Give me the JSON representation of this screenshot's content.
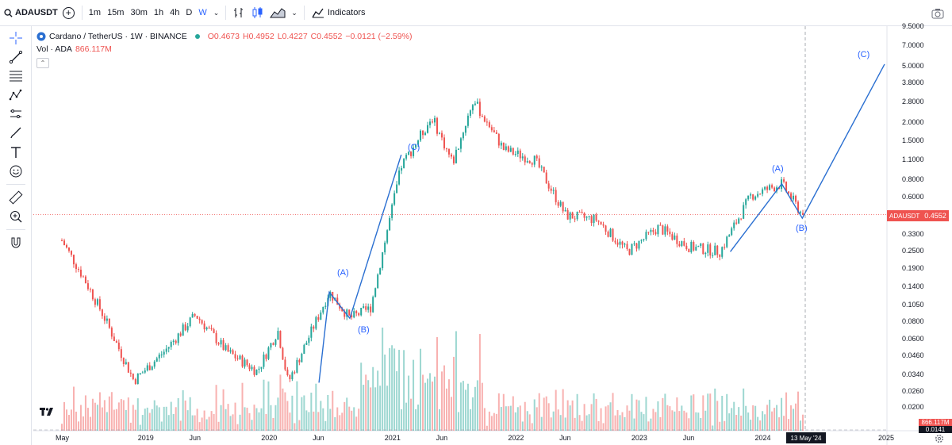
{
  "topbar": {
    "symbol": "ADAUSDT",
    "timeframes": [
      "1m",
      "15m",
      "30m",
      "1h",
      "4h",
      "D",
      "W"
    ],
    "active_timeframe": "W",
    "indicators_label": "Indicators"
  },
  "legend": {
    "title": "Cardano / TetherUS · 1W · BINANCE",
    "open": "O0.4673",
    "high": "H0.4952",
    "low": "L0.4227",
    "close": "C0.4552",
    "change": "−0.0121 (−2.59%)",
    "vol_label": "Vol · ADA",
    "vol_value": "866.117M"
  },
  "price_axis": {
    "ticks": [
      "9.5000",
      "7.0000",
      "5.0000",
      "3.8000",
      "2.8000",
      "2.0000",
      "1.5000",
      "1.1000",
      "0.8000",
      "0.6000",
      "0.3300",
      "0.2500",
      "0.1900",
      "0.1400",
      "0.1050",
      "0.0800",
      "0.0600",
      "0.0460",
      "0.0340",
      "0.0260",
      "0.0200"
    ],
    "symbol_tag": "ADAUSDT",
    "last_price": "0.4552",
    "volume_tag": "866.117M",
    "last_small": "0.0141"
  },
  "time_axis": {
    "labels": [
      "May",
      "2019",
      "Jun",
      "2020",
      "Jun",
      "2021",
      "Jun",
      "2022",
      "Jun",
      "2023",
      "Jun",
      "2024",
      "2025"
    ],
    "crosshair_date": "13 May '24"
  },
  "waves": {
    "a1": "(A)",
    "b1": "(B)",
    "c1": "(C)",
    "a2": "(A)",
    "b2": "(B)",
    "c2": "(C)"
  },
  "colors": {
    "up": "#26a69a",
    "down": "#ef5350",
    "wave_line": "#2a6fd1",
    "accent": "#2962ff"
  },
  "chart_data": {
    "type": "candlestick",
    "title": "Cardano / TetherUS · 1W · BINANCE",
    "scale": "log",
    "ylim": [
      0.0141,
      9.5
    ],
    "x_range": [
      "2018-05",
      "2025-06"
    ],
    "ohlc_last": {
      "open": 0.4673,
      "high": 0.4952,
      "low": 0.4227,
      "close": 0.4552,
      "change": -0.0121,
      "change_pct": -2.59
    },
    "volume_last": "866.117M",
    "price_path": [
      {
        "date": "2018-05",
        "price": 0.3
      },
      {
        "date": "2018-07",
        "price": 0.17
      },
      {
        "date": "2018-09",
        "price": 0.09
      },
      {
        "date": "2018-12",
        "price": 0.031
      },
      {
        "date": "2019-03",
        "price": 0.05
      },
      {
        "date": "2019-06",
        "price": 0.09
      },
      {
        "date": "2019-09",
        "price": 0.05
      },
      {
        "date": "2019-12",
        "price": 0.036
      },
      {
        "date": "2020-02",
        "price": 0.07
      },
      {
        "date": "2020-03",
        "price": 0.03
      },
      {
        "date": "2020-07",
        "price": 0.13
      },
      {
        "date": "2020-09",
        "price": 0.085
      },
      {
        "date": "2020-11",
        "price": 0.1
      },
      {
        "date": "2021-02",
        "price": 1.0
      },
      {
        "date": "2021-05",
        "price": 2.2
      },
      {
        "date": "2021-07",
        "price": 1.05
      },
      {
        "date": "2021-09",
        "price": 2.9
      },
      {
        "date": "2021-12",
        "price": 1.3
      },
      {
        "date": "2022-03",
        "price": 1.1
      },
      {
        "date": "2022-06",
        "price": 0.45
      },
      {
        "date": "2022-09",
        "price": 0.42
      },
      {
        "date": "2022-12",
        "price": 0.25
      },
      {
        "date": "2023-03",
        "price": 0.37
      },
      {
        "date": "2023-06",
        "price": 0.27
      },
      {
        "date": "2023-09",
        "price": 0.25
      },
      {
        "date": "2023-12",
        "price": 0.62
      },
      {
        "date": "2024-03",
        "price": 0.75
      },
      {
        "date": "2024-05",
        "price": 0.4552
      }
    ],
    "wave_projection": [
      {
        "label": "start",
        "date": "2020-06",
        "price": 0.03
      },
      {
        "label": "(A)",
        "date": "2020-07",
        "price": 0.13
      },
      {
        "label": "(B)",
        "date": "2020-09",
        "price": 0.085
      },
      {
        "label": "(C)",
        "date": "2021-02",
        "price": 1.2
      },
      {
        "label": "start2",
        "date": "2023-10",
        "price": 0.25
      },
      {
        "label": "(A)",
        "date": "2024-03",
        "price": 0.75
      },
      {
        "label": "(B)",
        "date": "2024-05",
        "price": 0.43
      },
      {
        "label": "(C)",
        "date": "2025-01",
        "price": 5.2
      }
    ]
  }
}
